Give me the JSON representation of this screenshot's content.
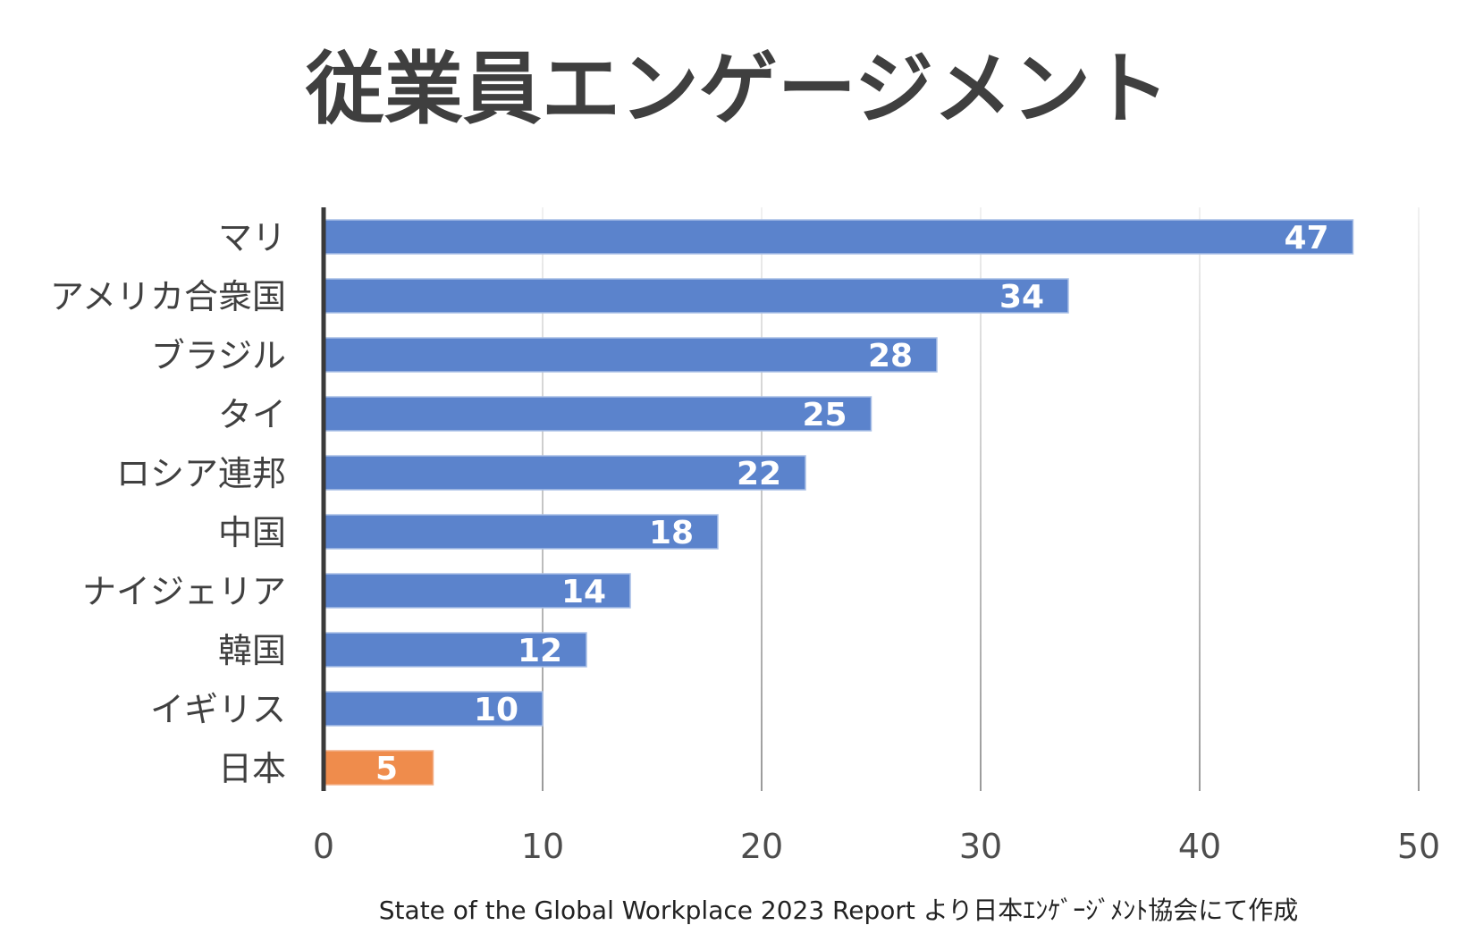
{
  "chart_data": {
    "type": "bar",
    "orientation": "horizontal",
    "title": "従業員エンゲージメント",
    "categories": [
      "マリ",
      "アメリカ合衆国",
      "ブラジル",
      "タイ",
      "ロシア連邦",
      "中国",
      "ナイジェリア",
      "韓国",
      "イギリス",
      "日本"
    ],
    "values": [
      47,
      34,
      28,
      25,
      22,
      18,
      14,
      12,
      10,
      5
    ],
    "xlim": [
      0,
      50
    ],
    "xticks": [
      0,
      10,
      20,
      30,
      40,
      50
    ],
    "grid": true,
    "legend": "none",
    "bar_color": "#5b83cc",
    "highlight_category": "日本",
    "highlight_color": "#ef8c4c",
    "source_note": "State of the Global Workplace 2023 Report より日本ｴﾝｹﾞｰｼﾞﾒﾝﾄ協会にて作成"
  }
}
